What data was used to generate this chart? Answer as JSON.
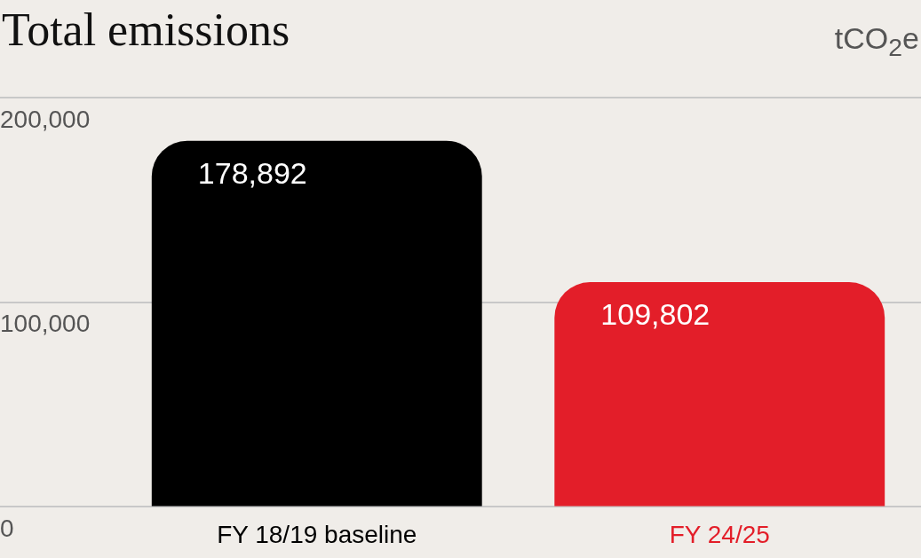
{
  "chart_data": {
    "type": "bar",
    "title": "Total emissions",
    "ylabel": "tCO$_{2}$e",
    "categories": [
      "FY 18/19 baseline",
      "FY 24/25"
    ],
    "values": [
      178892,
      109802
    ],
    "colors": [
      "#000000",
      "#e31e29"
    ],
    "ylim": [
      0,
      200000
    ],
    "yticks": [
      0,
      {
        "value": 100000,
        "label": "100,000"
      },
      {
        "value": 200000,
        "label": "200,000"
      }
    ],
    "grid": "y",
    "legend": false,
    "value_labels": [
      "178,892",
      "109,802"
    ]
  }
}
